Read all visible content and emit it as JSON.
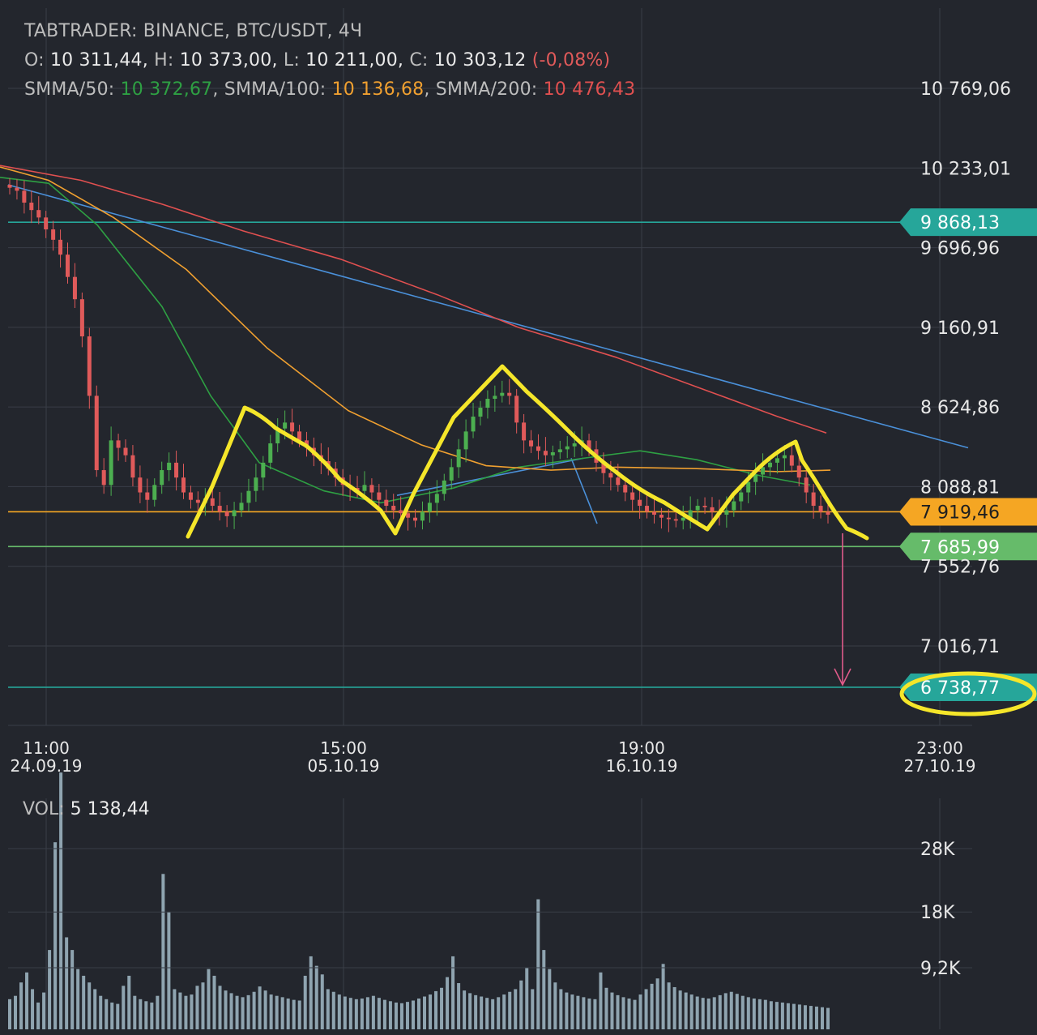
{
  "header": {
    "source_line": "TABTRADER: BINANCE, BTC/USDT, 4Ч",
    "ohlc": {
      "o_label": "O:",
      "o": "10 311,44,",
      "h_label": "H:",
      "h": "10 373,00,",
      "l_label": "L:",
      "l": "10 211,00,",
      "c_label": "C:",
      "c": "10 303,12",
      "change": "(-0,08%)"
    },
    "smma": {
      "s50_label": "SMMA/50:",
      "s50": "10 372,67",
      "s100_label": "SMMA/100:",
      "s100": "10 136,68",
      "s200_label": "SMMA/200:",
      "s200": "10 476,43",
      "sep": ","
    }
  },
  "volume": {
    "label": "VOL:",
    "value": "5 138,44"
  },
  "colors": {
    "background": "#23262d",
    "grid": "#3a3e47",
    "smma50": "#2ea043",
    "smma100": "#f0a030",
    "smma200": "#e05050",
    "trendline": "#4a90d9",
    "candle_up": "#4caf50",
    "candle_down": "#e05a5a",
    "volume": "#8fa4b0",
    "annotation": "#f5e62a",
    "level_teal": "#26a69a",
    "level_orange": "#f5a623",
    "level_green": "#66bb6a",
    "target_arrow": "#e05a8a"
  },
  "chart_data": [
    {
      "type": "line",
      "title": "",
      "y_axis_ticks": [
        "10 769,06",
        "10 233,01",
        "9 696,96",
        "9 160,91",
        "8 624,86",
        "8 088,81",
        "7 552,76",
        "7 016,71"
      ],
      "y_tick_values": [
        10769.06,
        10233.01,
        9696.96,
        9160.91,
        8624.86,
        8088.81,
        7552.76,
        7016.71
      ],
      "x_axis_ticks": [
        {
          "time": "11:00",
          "date": "24.09.19"
        },
        {
          "time": "15:00",
          "date": "05.10.19"
        },
        {
          "time": "19:00",
          "date": "16.10.19"
        },
        {
          "time": "23:00",
          "date": "27.10.19"
        }
      ],
      "price_levels": [
        {
          "label": "9 868,13",
          "value": 9868.13,
          "color": "#26a69a"
        },
        {
          "label": "7 919,46",
          "value": 7919.46,
          "color": "#f5a623"
        },
        {
          "label": "7 685,99",
          "value": 7685.99,
          "color": "#66bb6a"
        },
        {
          "label": "6 738,77",
          "value": 6738.77,
          "color": "#26a69a"
        }
      ],
      "series": [
        {
          "name": "SMMA/50",
          "color": "#2ea043",
          "points": [
            [
              0,
              10170
            ],
            [
              60,
              10130
            ],
            [
              120,
              9850
            ],
            [
              200,
              9300
            ],
            [
              260,
              8700
            ],
            [
              320,
              8250
            ],
            [
              400,
              8060
            ],
            [
              470,
              7980
            ],
            [
              560,
              8080
            ],
            [
              640,
              8220
            ],
            [
              720,
              8280
            ],
            [
              790,
              8330
            ],
            [
              860,
              8270
            ],
            [
              940,
              8160
            ],
            [
              1000,
              8100
            ]
          ]
        },
        {
          "name": "SMMA/100",
          "color": "#f0a030",
          "points": [
            [
              0,
              10240
            ],
            [
              60,
              10150
            ],
            [
              140,
              9900
            ],
            [
              230,
              9550
            ],
            [
              330,
              9020
            ],
            [
              430,
              8600
            ],
            [
              520,
              8370
            ],
            [
              600,
              8230
            ],
            [
              680,
              8200
            ],
            [
              760,
              8220
            ],
            [
              860,
              8210
            ],
            [
              960,
              8190
            ],
            [
              1025,
              8200
            ]
          ]
        },
        {
          "name": "SMMA/200",
          "color": "#e05050",
          "points": [
            [
              0,
              10250
            ],
            [
              100,
              10150
            ],
            [
              200,
              9990
            ],
            [
              300,
              9810
            ],
            [
              420,
              9620
            ],
            [
              540,
              9380
            ],
            [
              640,
              9160
            ],
            [
              760,
              8960
            ],
            [
              880,
              8720
            ],
            [
              960,
              8560
            ],
            [
              1020,
              8450
            ]
          ]
        }
      ],
      "trendlines": [
        {
          "from": [
            10,
            10120
          ],
          "to": [
            1195,
            8350
          ]
        },
        {
          "from": [
            490,
            8030
          ],
          "to": [
            720,
            8280
          ]
        },
        {
          "from": [
            705,
            8280
          ],
          "to": [
            737,
            7840
          ]
        }
      ],
      "closes": [
        10100,
        10080,
        10000,
        9950,
        9900,
        9820,
        9750,
        9650,
        9500,
        9350,
        9100,
        8700,
        8200,
        8100,
        8400,
        8350,
        8300,
        8150,
        8050,
        8000,
        8100,
        8200,
        8250,
        8150,
        8050,
        8000,
        7980,
        8010,
        7960,
        7920,
        7890,
        7930,
        7980,
        8060,
        8150,
        8250,
        8380,
        8480,
        8520,
        8460,
        8400,
        8350,
        8300,
        8260,
        8210,
        8150,
        8100,
        8080,
        8060,
        8100,
        8050,
        8000,
        7960,
        7930,
        7910,
        7880,
        7860,
        7920,
        7980,
        8040,
        8130,
        8220,
        8340,
        8460,
        8560,
        8620,
        8680,
        8700,
        8720,
        8700,
        8520,
        8400,
        8360,
        8330,
        8300,
        8320,
        8340,
        8360,
        8380,
        8400,
        8340,
        8250,
        8180,
        8150,
        8100,
        8050,
        8000,
        7960,
        7920,
        7900,
        7880,
        7870,
        7860,
        7880,
        7930,
        7960,
        7950,
        7920,
        7900,
        7930,
        7990,
        8050,
        8120,
        8170,
        8220,
        8250,
        8280,
        8300,
        8230,
        8150,
        8050,
        7960,
        7920,
        7900
      ],
      "annotation_pattern": "head-and-shoulders"
    },
    {
      "type": "bar",
      "title": "",
      "y_axis_ticks": [
        "28K",
        "18K",
        "9,2K"
      ],
      "y_tick_values": [
        28000,
        18000,
        9200
      ],
      "values": [
        4500,
        5000,
        7000,
        8500,
        6000,
        4000,
        5500,
        12000,
        29000,
        40000,
        14000,
        12000,
        9000,
        8000,
        7000,
        6000,
        5000,
        4500,
        4000,
        3800,
        6500,
        8000,
        5000,
        4500,
        4200,
        4000,
        5000,
        24000,
        18000,
        6000,
        5500,
        5000,
        5200,
        6500,
        7000,
        9000,
        8000,
        6500,
        5800,
        5400,
        5000,
        4800,
        5100,
        5600,
        6400,
        5800,
        5200,
        5000,
        4800,
        4600,
        4400,
        4300,
        8000,
        11000,
        9500,
        8200,
        6000,
        5600,
        5200,
        4900,
        4700,
        4500,
        4600,
        4800,
        5000,
        4700,
        4400,
        4200,
        4000,
        3900,
        4100,
        4300,
        4600,
        4900,
        5200,
        5700,
        6200,
        7800,
        11000,
        6900,
        5800,
        5400,
        5100,
        4900,
        4700,
        4500,
        4800,
        5200,
        5600,
        6000,
        7300,
        9200,
        6000,
        20000,
        12000,
        9000,
        7000,
        6000,
        5500,
        5200,
        5000,
        4800,
        4600,
        4500,
        8500,
        6200,
        5500,
        5100,
        4800,
        4600,
        4400,
        5200,
        6000,
        6800,
        7600,
        9800,
        7000,
        6300,
        5800,
        5500,
        5200,
        4900,
        4700,
        4600,
        4800,
        5100,
        5400,
        5600,
        5300,
        5000,
        4800,
        4600,
        4500,
        4400,
        4200,
        4100,
        4000,
        3900,
        3800,
        3700,
        3600,
        3500,
        3400,
        3300,
        3200
      ]
    }
  ]
}
